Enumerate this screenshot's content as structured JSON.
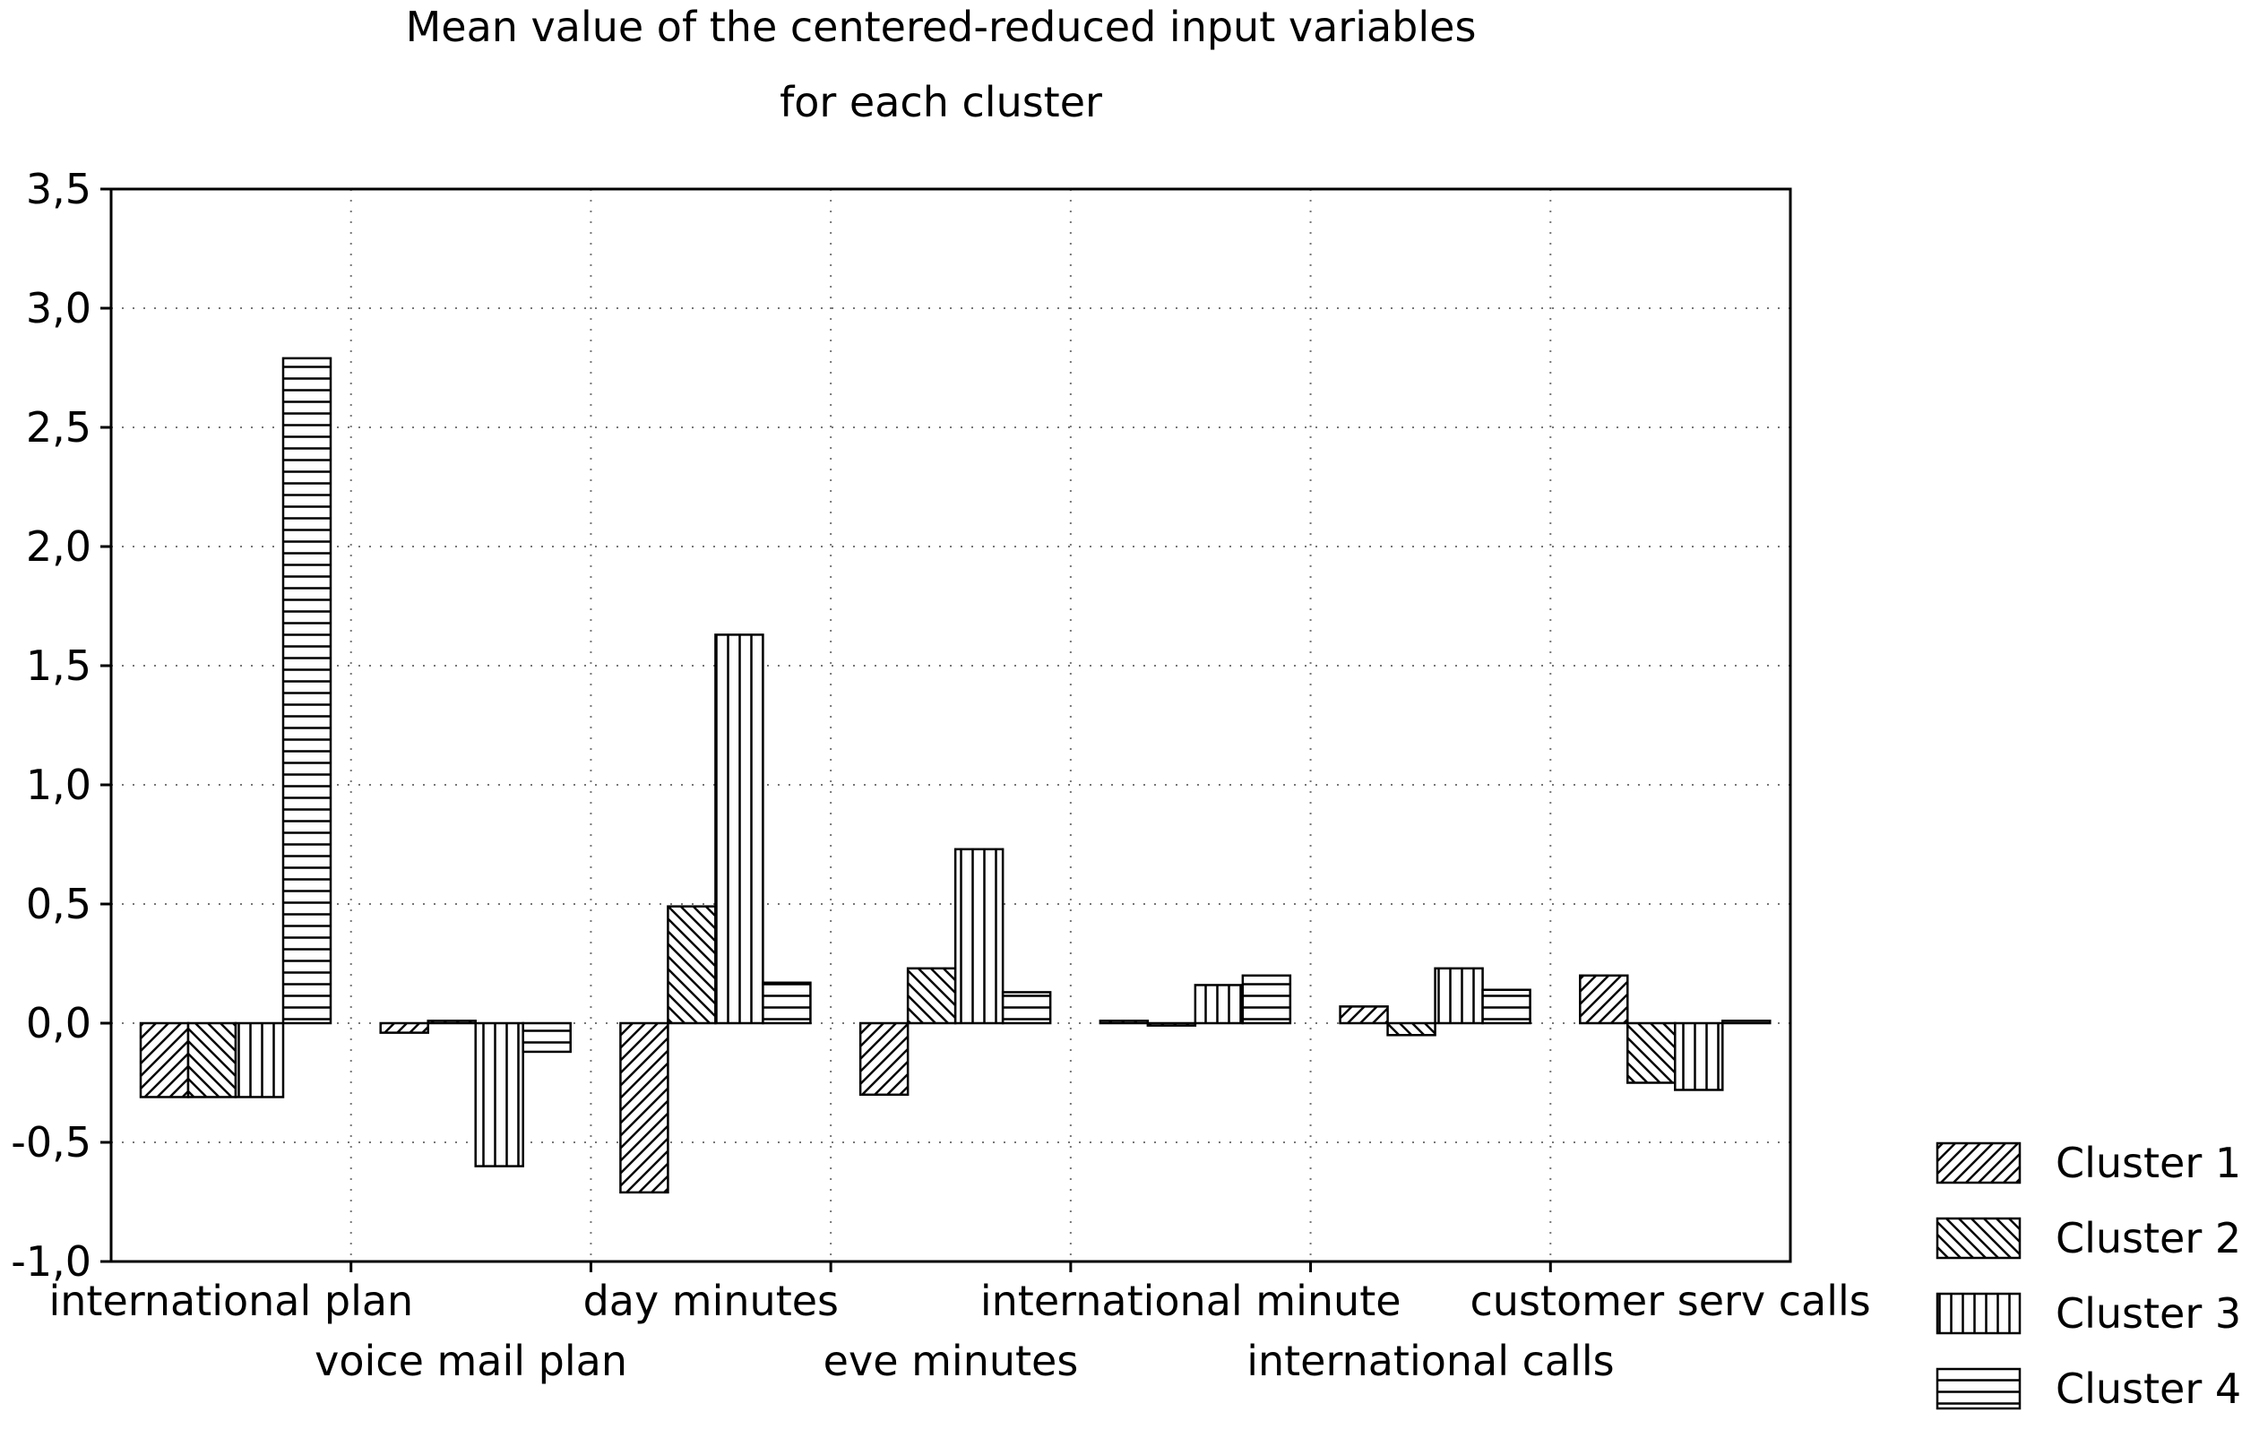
{
  "chart_data": {
    "type": "bar",
    "title": "Mean value of the centered-reduced input variables",
    "subtitle": "for each cluster",
    "xlabel": "",
    "ylabel": "",
    "ylim": [
      -1.0,
      3.5
    ],
    "y_ticks": [
      "3,5",
      "3,0",
      "2,5",
      "2,0",
      "1,5",
      "1,0",
      "0,5",
      "0,0",
      "-0,5",
      "-1,0"
    ],
    "grid": true,
    "legend_position": "bottom-right",
    "categories": [
      "international plan",
      "voice mail plan",
      "day minutes",
      "eve minutes",
      "international minute",
      "international calls",
      "customer serv calls"
    ],
    "series": [
      {
        "name": "Cluster 1",
        "pattern": "diag-right",
        "values": [
          -0.31,
          -0.04,
          -0.71,
          -0.3,
          0.01,
          0.07,
          0.2
        ]
      },
      {
        "name": "Cluster 2",
        "pattern": "diag-left",
        "values": [
          -0.31,
          0.01,
          0.49,
          0.23,
          -0.01,
          -0.05,
          -0.25
        ]
      },
      {
        "name": "Cluster 3",
        "pattern": "vertical",
        "values": [
          -0.31,
          -0.6,
          1.63,
          0.73,
          0.16,
          0.23,
          -0.28
        ]
      },
      {
        "name": "Cluster 4",
        "pattern": "horizontal",
        "values": [
          2.79,
          -0.12,
          0.17,
          0.13,
          0.2,
          0.14,
          0.01
        ]
      }
    ]
  }
}
